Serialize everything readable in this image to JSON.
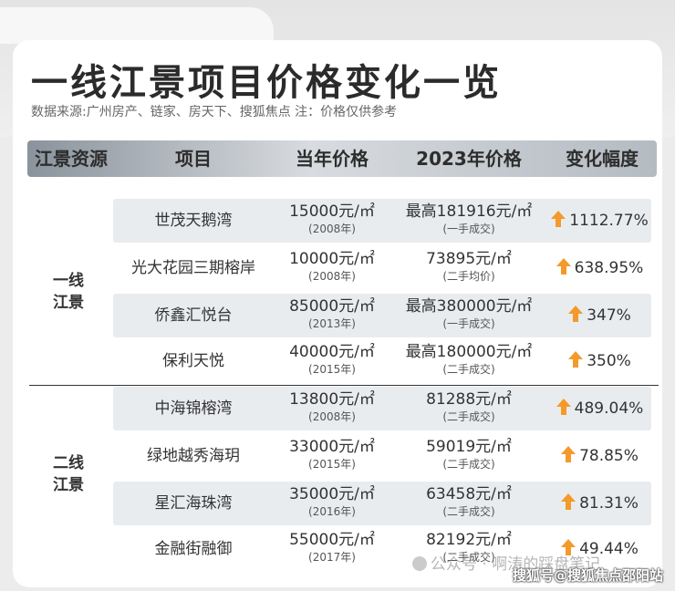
{
  "title": "一线江景项目价格变化一览",
  "source": "数据来源:广州房产、链家、房天下、搜狐焦点 注：价格仅供参考",
  "headers": [
    "江景资源",
    "项目",
    "当年价格",
    "2023年价格",
    "变化幅度"
  ],
  "tiers": [
    {
      "label_line1": "一线",
      "label_line2": "江景"
    },
    {
      "label_line1": "二线",
      "label_line2": "江景"
    }
  ],
  "rows": [
    {
      "name": "世茂天鹅湾",
      "cur_price": "15000元/㎡",
      "cur_year": "(2008年)",
      "now_price": "最高181916元/㎡",
      "now_note": "(一手成交)",
      "change": "1112.77%"
    },
    {
      "name": "光大花园三期榕岸",
      "cur_price": "10000元/㎡",
      "cur_year": "(2008年)",
      "now_price": "73895元/㎡",
      "now_note": "(二手均价)",
      "change": "638.95%"
    },
    {
      "name": "侨鑫汇悦台",
      "cur_price": "85000元/㎡",
      "cur_year": "(2013年)",
      "now_price": "最高380000元/㎡",
      "now_note": "(一手成交)",
      "change": "347%"
    },
    {
      "name": "保利天悦",
      "cur_price": "40000元/㎡",
      "cur_year": "(2015年)",
      "now_price": "最高180000元/㎡",
      "now_note": "(二手成交)",
      "change": "350%"
    },
    {
      "name": "中海锦榕湾",
      "cur_price": "13800元/㎡",
      "cur_year": "(2008年)",
      "now_price": "81288元/㎡",
      "now_note": "(二手成交)",
      "change": "489.04%"
    },
    {
      "name": "绿地越秀海玥",
      "cur_price": "33000元/㎡",
      "cur_year": "(2015年)",
      "now_price": "59019元/㎡",
      "now_note": "(二手成交)",
      "change": "78.85%"
    },
    {
      "name": "星汇海珠湾",
      "cur_price": "35000元/㎡",
      "cur_year": "(2016年)",
      "now_price": "63458元/㎡",
      "now_note": "(二手成交)",
      "change": "81.31%"
    },
    {
      "name": "金融街融御",
      "cur_price": "55000元/㎡",
      "cur_year": "(2017年)",
      "now_price": "82192元/㎡",
      "now_note": "(二手成交)",
      "change": "49.44%"
    }
  ],
  "watermark": "公众号 · 啊涛的踩盘笔记",
  "sohu_mark": "搜狐号@搜狐焦点邵阳站",
  "colors": {
    "arrow": "#f39a2b",
    "shade": "#e9ecef"
  }
}
